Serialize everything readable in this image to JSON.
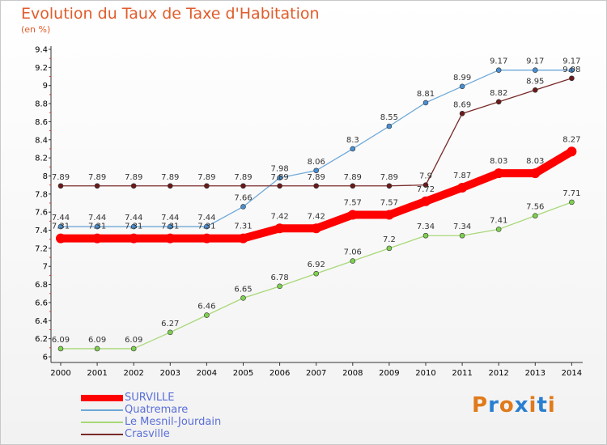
{
  "header": {
    "title": "Evolution du Taux de Taxe d'Habitation",
    "unit": "(en %)"
  },
  "logo": {
    "text": "Proxiti",
    "colors": [
      "#e07a1a",
      "#2a7fd0",
      "#e07a1a",
      "#2a7fd0",
      "#e07a1a",
      "#2a7fd0",
      "#e07a1a"
    ]
  },
  "chart_data": {
    "type": "line",
    "title": "Evolution du Taux de Taxe d'Habitation",
    "ylabel": "(en %)",
    "xlabel": "",
    "x": [
      "2000",
      "2001",
      "2002",
      "2003",
      "2004",
      "2005",
      "2006",
      "2007",
      "2008",
      "2009",
      "2010",
      "2011",
      "2012",
      "2013",
      "2014"
    ],
    "ylim": [
      6,
      9.4
    ],
    "yticks": [
      "6",
      "6.2",
      "6.4",
      "6.6",
      "6.8",
      "7",
      "7.2",
      "7.4",
      "7.6",
      "7.8",
      "8",
      "8.2",
      "8.4",
      "8.6",
      "8.8",
      "9",
      "9.2",
      "9.4"
    ],
    "grid": false,
    "legend_position": "bottom-left",
    "series": [
      {
        "name": "SURVILLE",
        "color": "#ff0000",
        "labels": [
          "7.31",
          "7.31",
          "7.31",
          "7.31",
          "7.31",
          "7.31",
          "7.42",
          "7.42",
          "7.57",
          "7.57",
          "7.72",
          "7.87",
          "8.03",
          "8.03",
          "8.27"
        ],
        "values": [
          7.31,
          7.31,
          7.31,
          7.31,
          7.31,
          7.31,
          7.42,
          7.42,
          7.57,
          7.57,
          7.72,
          7.87,
          8.03,
          8.03,
          8.27
        ]
      },
      {
        "name": "Quatremare",
        "color": "#6ea8d8",
        "labels": [
          "7.44",
          "7.44",
          "7.44",
          "7.44",
          "7.44",
          "7.66",
          "7.98",
          "8.06",
          "8.3",
          "8.55",
          "8.81",
          "8.99",
          "9.17",
          "9.17",
          "9.17"
        ],
        "values": [
          7.44,
          7.44,
          7.44,
          7.44,
          7.44,
          7.66,
          7.98,
          8.06,
          8.3,
          8.55,
          8.81,
          8.99,
          9.17,
          9.17,
          9.17
        ]
      },
      {
        "name": "Le Mesnil-Jourdain",
        "color": "#a8d878",
        "labels": [
          "6.09",
          "6.09",
          "6.09",
          "6.27",
          "6.46",
          "6.65",
          "6.78",
          "6.92",
          "7.06",
          "7.2",
          "7.34",
          "7.34",
          "7.41",
          "7.56",
          "7.71"
        ],
        "values": [
          6.09,
          6.09,
          6.09,
          6.27,
          6.46,
          6.65,
          6.78,
          6.92,
          7.06,
          7.2,
          7.34,
          7.34,
          7.41,
          7.56,
          7.71
        ]
      },
      {
        "name": "Crasville",
        "color": "#7a2a2a",
        "labels": [
          "7.89",
          "7.89",
          "7.89",
          "7.89",
          "7.89",
          "7.89",
          "7.89",
          "7.89",
          "7.89",
          "7.89",
          "7.9",
          "8.69",
          "8.82",
          "8.95",
          "9.08"
        ],
        "values": [
          7.89,
          7.89,
          7.89,
          7.89,
          7.89,
          7.89,
          7.89,
          7.89,
          7.89,
          7.89,
          7.9,
          8.69,
          8.82,
          8.95,
          9.08
        ]
      }
    ]
  }
}
